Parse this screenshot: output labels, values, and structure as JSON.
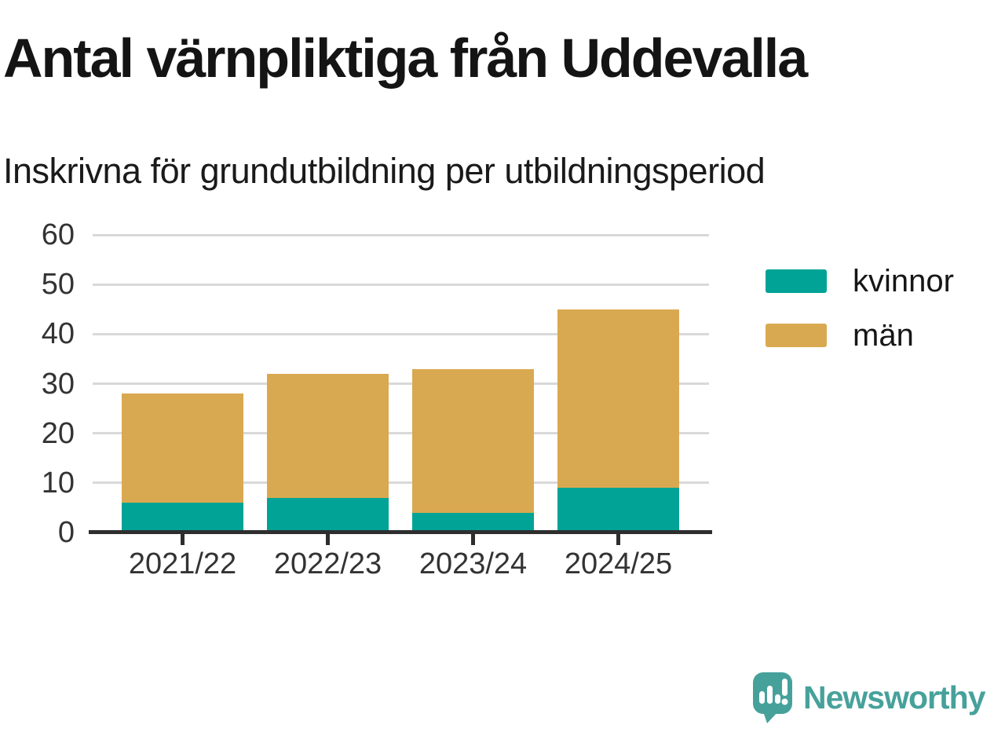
{
  "title": "Antal värnpliktiga från Uddevalla",
  "subtitle": "Inskrivna för grundutbildning per utbildningsperiod",
  "chart_data": {
    "type": "bar",
    "stacked": true,
    "title": "Antal värnpliktiga från Uddevalla",
    "subtitle": "Inskrivna för grundutbildning per utbildningsperiod",
    "categories": [
      "2021/22",
      "2022/23",
      "2023/24",
      "2024/25"
    ],
    "series": [
      {
        "name": "kvinnor",
        "color": "#00a396",
        "values": [
          6,
          7,
          4,
          9
        ]
      },
      {
        "name": "män",
        "color": "#d9a951",
        "values": [
          22,
          25,
          29,
          36
        ]
      }
    ],
    "stack_totals": [
      28,
      32,
      33,
      45
    ],
    "xlabel": "",
    "ylabel": "",
    "ylim": [
      0,
      60
    ],
    "yticks": [
      0,
      10,
      20,
      30,
      40,
      50,
      60
    ],
    "grid": true,
    "legend_position": "right"
  },
  "legend": {
    "items": [
      {
        "label": "kvinnor",
        "color": "#00a396"
      },
      {
        "label": "män",
        "color": "#d9a951"
      }
    ]
  },
  "branding": {
    "logo_text": "Newsworthy",
    "logo_color": "#47a19b"
  },
  "colors": {
    "background": "#ffffff",
    "kvinnor": "#00a396",
    "man": "#d9a951",
    "grid": "#d9d9d9",
    "axis": "#2e2e2e",
    "tick_label": "#333333",
    "title_text": "#141414",
    "logo": "#47a19b"
  }
}
